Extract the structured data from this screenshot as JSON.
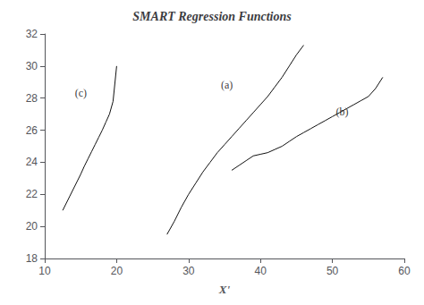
{
  "chart_data": {
    "type": "line",
    "title": "SMART Regression Functions",
    "xlabel": "X'",
    "xlim": [
      10,
      60
    ],
    "ylim": [
      18,
      32
    ],
    "xticks": [
      10,
      20,
      30,
      40,
      50,
      60
    ],
    "yticks": [
      18,
      20,
      22,
      24,
      26,
      28,
      30,
      32
    ],
    "grid": false,
    "series": [
      {
        "color": "#111111",
        "x": [
          12.5,
          13.5,
          14.5,
          15.0,
          15.5,
          16.0,
          16.5,
          17.0,
          17.5,
          18.0,
          18.5,
          19.0,
          19.5,
          20.0
        ],
        "values": [
          21.0,
          21.9,
          22.8,
          23.25,
          23.75,
          24.2,
          24.65,
          25.1,
          25.55,
          26.0,
          26.5,
          27.0,
          27.8,
          30.0
        ]
      },
      {
        "color": "#111111",
        "x": [
          27.0,
          28.0,
          29.0,
          30.0,
          31.0,
          32.0,
          33.0,
          34.0,
          35.0,
          36.0,
          37.0,
          38.0,
          39.0,
          40.0,
          41.0,
          42.0,
          43.0,
          44.0,
          45.0,
          46.0
        ],
        "values": [
          19.5,
          20.3,
          21.2,
          22.0,
          22.7,
          23.4,
          24.0,
          24.6,
          25.1,
          25.6,
          26.1,
          26.6,
          27.1,
          27.6,
          28.1,
          28.7,
          29.3,
          30.0,
          30.7,
          31.3
        ]
      },
      {
        "color": "#111111",
        "x": [
          36.0,
          37.0,
          38.0,
          39.0,
          40.0,
          41.0,
          42.0,
          43.0,
          44.0,
          45.0,
          46.0,
          47.0,
          48.0,
          49.0,
          50.0,
          51.0,
          52.0,
          53.0,
          54.0,
          55.0,
          56.0,
          57.0
        ],
        "values": [
          23.5,
          23.8,
          24.1,
          24.4,
          24.5,
          24.6,
          24.8,
          25.0,
          25.3,
          25.6,
          25.85,
          26.1,
          26.35,
          26.6,
          26.85,
          27.1,
          27.35,
          27.6,
          27.85,
          28.1,
          28.6,
          29.3
        ]
      }
    ],
    "annotations": [
      {
        "text": "(c)",
        "x": 14.2,
        "y": 28.0
      },
      {
        "text": "(a)",
        "x": 34.5,
        "y": 28.5
      },
      {
        "text": "(b)",
        "x": 50.5,
        "y": 26.8
      }
    ]
  }
}
